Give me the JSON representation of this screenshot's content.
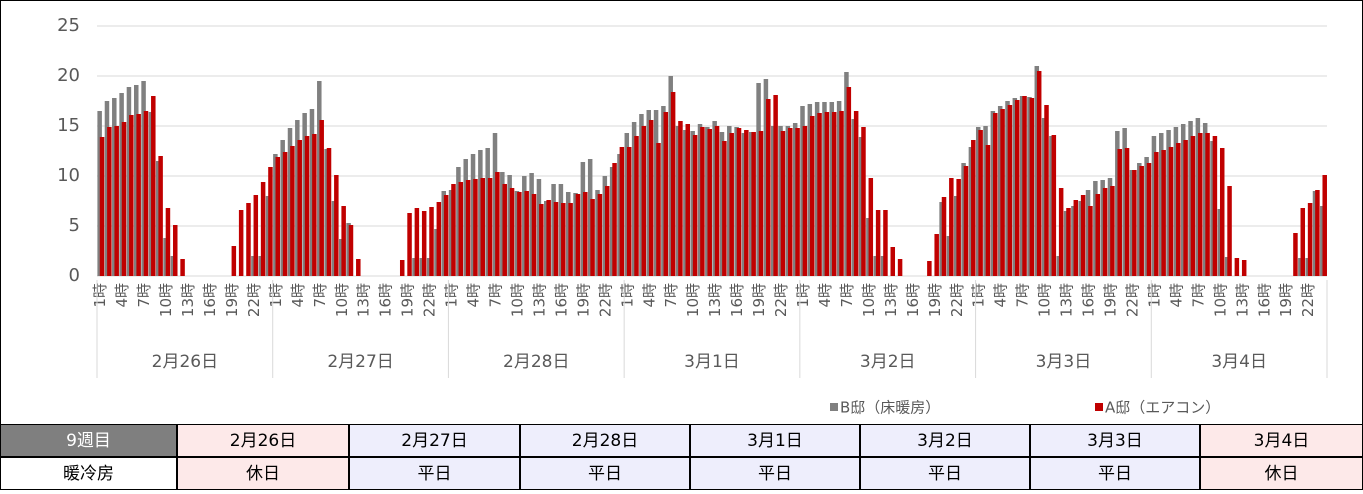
{
  "chart_data": {
    "type": "bar",
    "categories": [
      "1時",
      null,
      null,
      "4時",
      null,
      null,
      "7時",
      null,
      null,
      "10時",
      null,
      null,
      "13時",
      null,
      null,
      "16時",
      null,
      null,
      "19時",
      null,
      null,
      "22時",
      null,
      null,
      "1時",
      null,
      null,
      "4時",
      null,
      null,
      "7時",
      null,
      null,
      "10時",
      null,
      null,
      "13時",
      null,
      null,
      "16時",
      null,
      null,
      "19時",
      null,
      null,
      "22時",
      null,
      null,
      "1時",
      null,
      null,
      "4時",
      null,
      null,
      "7時",
      null,
      null,
      "10時",
      null,
      null,
      "13時",
      null,
      null,
      "16時",
      null,
      null,
      "19時",
      null,
      null,
      "22時",
      null,
      null,
      "1時",
      null,
      null,
      "4時",
      null,
      null,
      "7時",
      null,
      null,
      "10時",
      null,
      null,
      "13時",
      null,
      null,
      "16時",
      null,
      null,
      "19時",
      null,
      null,
      "22時",
      null,
      null,
      "1時",
      null,
      null,
      "4時",
      null,
      null,
      "7時",
      null,
      null,
      "10時",
      null,
      null,
      "13時",
      null,
      null,
      "16時",
      null,
      null,
      "19時",
      null,
      null,
      "22時",
      null,
      null,
      "1時",
      null,
      null,
      "4時",
      null,
      null,
      "7時",
      null,
      null,
      "10時",
      null,
      null,
      "13時",
      null,
      null,
      "16時",
      null,
      null,
      "19時",
      null,
      null,
      "22時",
      null,
      null,
      "1時",
      null,
      null,
      "4時",
      null,
      null,
      "7時",
      null,
      null,
      "10時",
      null,
      null,
      "13時",
      null,
      null,
      "16時",
      null,
      null,
      "19時",
      null,
      null,
      "22時",
      null,
      null
    ],
    "groups": [
      "2月26日",
      "2月27日",
      "2月28日",
      "3月1日",
      "3月2日",
      "3月3日",
      "3月4日"
    ],
    "series": [
      {
        "name": "B邸（床暖房）",
        "color": "#808080",
        "values": [
          16.5,
          17.5,
          17.8,
          18.3,
          18.9,
          19.1,
          19.5,
          16.4,
          11.5,
          3.8,
          2,
          0,
          0,
          0,
          0,
          0,
          0,
          0,
          0,
          0,
          0,
          2,
          2,
          8,
          12.2,
          13.6,
          14.8,
          15.6,
          16.3,
          16.7,
          19.5,
          12.7,
          7.5,
          3.7,
          5.3,
          0,
          0,
          0,
          0,
          0,
          0,
          0,
          0,
          1.8,
          1.8,
          1.8,
          4.7,
          8.5,
          8.6,
          10.9,
          11.7,
          12.2,
          12.6,
          12.8,
          14.3,
          10.4,
          10.1,
          8.5,
          10.0,
          10.3,
          9.7,
          7.5,
          9.2,
          9.2,
          8.4,
          8.3,
          11.4,
          11.7,
          8.6,
          10.0,
          10.9,
          12.2,
          14.3,
          15.4,
          16.2,
          16.6,
          16.6,
          17.0,
          20.0,
          15.0,
          14.6,
          14.5,
          15.2,
          14.9,
          15.5,
          14.4,
          15.0,
          14.9,
          14.3,
          14.4,
          19.3,
          19.7,
          15.0,
          15.0,
          15.0,
          15.3,
          17.0,
          17.2,
          17.4,
          17.4,
          17.4,
          17.5,
          20.4,
          15.7,
          13.9,
          5.8,
          2,
          2,
          0,
          0,
          0,
          0,
          0,
          0,
          0,
          7.4,
          4,
          8,
          11.3,
          12.9,
          14.9,
          15.0,
          16.5,
          17.0,
          17.5,
          17.8,
          18.0,
          17.9,
          21.0,
          15.8,
          14.0,
          2,
          6.5,
          7.0,
          7.5,
          8.6,
          9.5,
          9.6,
          9.8,
          14.5,
          14.8,
          10.6,
          11.3,
          11.9,
          14.0,
          14.3,
          14.6,
          14.9,
          15.2,
          15.5,
          15.8,
          15.3,
          13.5,
          6.7,
          1.9,
          0,
          0,
          0,
          0,
          0,
          0,
          0,
          0,
          0,
          1.8,
          1.8,
          8.5,
          7.0
        ]
      },
      {
        "name": "A邸（エアコン）",
        "color": "#c00000",
        "values": [
          13.9,
          14.9,
          15.0,
          15.4,
          16.1,
          16.2,
          16.5,
          18.0,
          12.0,
          6.8,
          5.1,
          1.7,
          0,
          0,
          0,
          0,
          0,
          0,
          3.0,
          6.6,
          7.3,
          8.1,
          9.4,
          10.9,
          11.9,
          12.4,
          13.0,
          13.6,
          14.0,
          14.2,
          15.6,
          12.8,
          10.1,
          7.0,
          5.1,
          1.7,
          0,
          0,
          0,
          0,
          0,
          1.6,
          6.3,
          6.8,
          6.5,
          6.9,
          7.4,
          8.1,
          9.2,
          9.4,
          9.6,
          9.7,
          9.8,
          9.8,
          10.4,
          9.2,
          8.8,
          8.4,
          8.5,
          8.2,
          7.2,
          7.6,
          7.4,
          7.3,
          7.3,
          8.2,
          8.4,
          7.7,
          8.2,
          9.0,
          11.3,
          12.9,
          12.9,
          14.0,
          15.0,
          15.6,
          13.3,
          16.4,
          18.4,
          15.5,
          15.2,
          14.1,
          14.9,
          14.7,
          15.0,
          13.5,
          14.3,
          14.8,
          14.6,
          14.4,
          14.5,
          17.7,
          18.1,
          14.5,
          14.8,
          14.8,
          15.0,
          16.0,
          16.3,
          16.4,
          16.4,
          16.5,
          18.9,
          16.5,
          14.9,
          9.8,
          6.6,
          6.6,
          2.9,
          1.7,
          0,
          0,
          0,
          1.5,
          4.2,
          7.9,
          9.8,
          9.7,
          11.0,
          13.6,
          14.6,
          13.1,
          16.3,
          16.7,
          17.1,
          17.6,
          18.0,
          17.8,
          20.5,
          17.1,
          14.1,
          8.8,
          6.8,
          7.6,
          8.1,
          7.0,
          8.2,
          8.8,
          9.0,
          12.7,
          12.8,
          10.6,
          11.0,
          11.3,
          12.4,
          12.6,
          12.9,
          13.3,
          13.6,
          14.0,
          14.3,
          14.3,
          14.0,
          12.8,
          9.0,
          1.8,
          1.6,
          0,
          0,
          0,
          0,
          0,
          0,
          4.3,
          6.8,
          7.3,
          8.6,
          10.1
        ]
      }
    ],
    "ylim": [
      0,
      25
    ],
    "yticks": [
      0,
      5,
      10,
      15,
      20,
      25
    ],
    "grid": true
  },
  "table": {
    "header": [
      "9週目",
      "2月26日",
      "2月27日",
      "2月28日",
      "3月1日",
      "3月2日",
      "3月3日",
      "3月4日"
    ],
    "row": [
      "暖冷房",
      "休日",
      "平日",
      "平日",
      "平日",
      "平日",
      "平日",
      "休日"
    ]
  }
}
